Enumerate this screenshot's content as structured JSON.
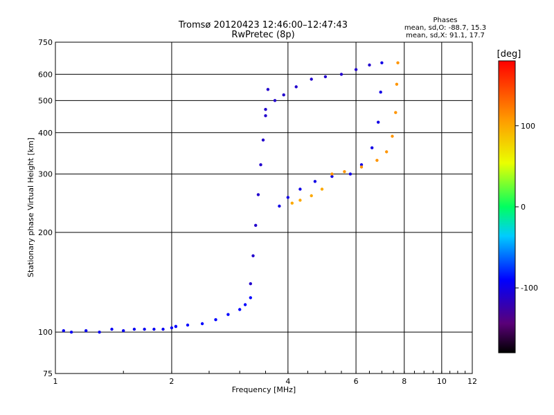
{
  "chart_data": {
    "type": "scatter",
    "title": "Tromsø 20120423 12:46:00–12:47:43",
    "subtitle": "RwPretec (8p)",
    "xlabel": "Frequency [MHz]",
    "ylabel": "Stationary phase Virtual Height [km]",
    "x_scale": "log",
    "y_scale": "log",
    "xlim": [
      1,
      12
    ],
    "ylim": [
      75,
      750
    ],
    "x_ticks": [
      1,
      2,
      4,
      6,
      8,
      10,
      12
    ],
    "y_ticks": [
      75,
      100,
      200,
      300,
      400,
      500,
      600,
      750
    ],
    "grid": true,
    "phase_stats": {
      "title": "Phases",
      "line_o": "mean, sd,O: -88.7, 15.3",
      "line_x": "mean, sd,X:  91.1, 17.7"
    },
    "colorbar": {
      "label": "[deg]",
      "range": [
        -180,
        180
      ],
      "ticks": [
        100,
        0,
        -100
      ],
      "colormap": "rainbow (black–purple–blue–cyan–green–yellow–orange–red)"
    },
    "traces": [
      {
        "name": "",
        "phase_deg": -95,
        "x": [
          1.05,
          1.1,
          1.2,
          1.3,
          1.4,
          1.5,
          1.6,
          1.7,
          1.8,
          1.9,
          2.0,
          2.05
        ],
        "y": [
          101,
          100,
          101,
          100,
          102,
          101,
          102,
          102,
          102,
          102,
          103,
          104
        ]
      },
      {
        "name": "",
        "phase_deg": -90,
        "x": [
          2.05,
          2.2,
          2.4,
          2.6,
          2.8,
          3.0,
          3.1,
          3.2
        ],
        "y": [
          104,
          105,
          106,
          109,
          113,
          117,
          121,
          127
        ]
      },
      {
        "name": "",
        "phase_deg": -110,
        "x": [
          3.2,
          3.25,
          3.3,
          3.35,
          3.4,
          3.45,
          3.5,
          3.55
        ],
        "y": [
          140,
          170,
          210,
          260,
          320,
          380,
          450,
          540
        ]
      },
      {
        "name": "",
        "phase_deg": -110,
        "x": [
          3.5,
          3.7,
          3.9,
          4.2,
          4.6,
          5.0,
          5.5,
          6.0,
          6.5
        ],
        "y": [
          470,
          500,
          520,
          550,
          580,
          590,
          600,
          620,
          640
        ]
      },
      {
        "name": "",
        "phase_deg": -100,
        "x": [
          3.8,
          4.0,
          4.3,
          4.7,
          5.2,
          5.8,
          6.2,
          6.6,
          6.85,
          6.95,
          7.0
        ],
        "y": [
          240,
          255,
          270,
          285,
          295,
          300,
          320,
          360,
          430,
          530,
          650
        ]
      },
      {
        "name": "",
        "phase_deg": 100,
        "x": [
          4.1,
          4.3,
          4.6,
          4.9
        ],
        "y": [
          245,
          250,
          258,
          270
        ]
      },
      {
        "name": "",
        "phase_deg": 110,
        "x": [
          5.2,
          5.6,
          6.2,
          6.8,
          7.2,
          7.45,
          7.6,
          7.65,
          7.7
        ],
        "y": [
          300,
          305,
          315,
          330,
          350,
          390,
          460,
          560,
          650
        ]
      }
    ]
  }
}
